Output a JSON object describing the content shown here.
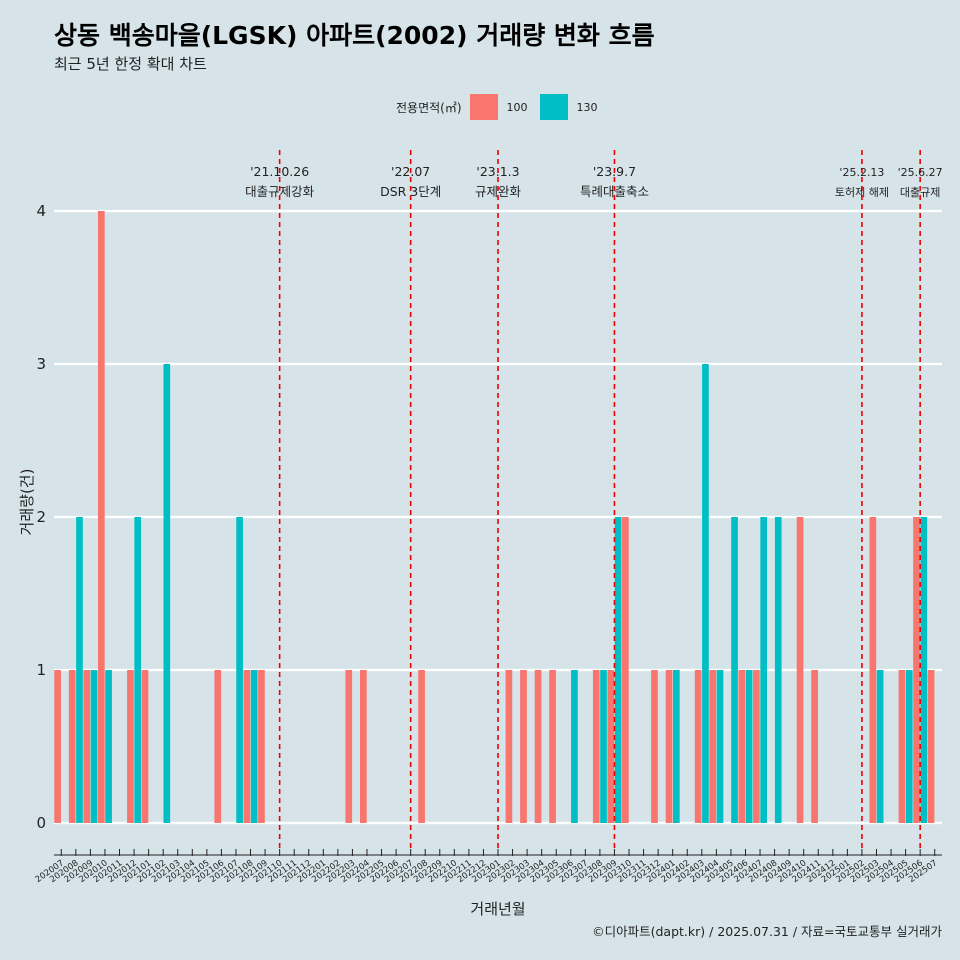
{
  "title": "상동 백송마을(LGSK) 아파트(2002) 거래량 변화 흐름",
  "subtitle": "최근 5년 한정 확대 차트",
  "caption": "©디아파트(dapt.kr) / 2025.07.31 / 자료=국토교통부 실거래가",
  "legend": {
    "title": "전용면적(㎡)",
    "items": [
      {
        "label": "100",
        "color": "#f8766d"
      },
      {
        "label": "130",
        "color": "#00bfc4"
      }
    ]
  },
  "chart_data": {
    "type": "bar",
    "xlabel": "거래년월",
    "ylabel": "거래량(건)",
    "ylim": [
      0,
      4
    ],
    "yticks": [
      0,
      1,
      2,
      3,
      4
    ],
    "grid": true,
    "legend_position": "top",
    "categories": [
      "202007",
      "202008",
      "202009",
      "202010",
      "202011",
      "202012",
      "202101",
      "202102",
      "202103",
      "202104",
      "202105",
      "202106",
      "202107",
      "202108",
      "202109",
      "202110",
      "202111",
      "202112",
      "202201",
      "202202",
      "202203",
      "202204",
      "202205",
      "202206",
      "202207",
      "202208",
      "202209",
      "202210",
      "202211",
      "202212",
      "202301",
      "202302",
      "202303",
      "202304",
      "202305",
      "202306",
      "202307",
      "202308",
      "202309",
      "202310",
      "202311",
      "202312",
      "202401",
      "202402",
      "202403",
      "202404",
      "202405",
      "202406",
      "202407",
      "202408",
      "202409",
      "202410",
      "202411",
      "202412",
      "202501",
      "202502",
      "202503",
      "202504",
      "202505",
      "202506",
      "202507"
    ],
    "series": [
      {
        "name": "100",
        "color": "#f8766d",
        "values": [
          1,
          1,
          1,
          4,
          0,
          1,
          1,
          0,
          0,
          0,
          0,
          1,
          0,
          1,
          1,
          0,
          0,
          0,
          0,
          0,
          1,
          1,
          0,
          0,
          0,
          1,
          0,
          0,
          0,
          0,
          0,
          1,
          1,
          1,
          1,
          0,
          0,
          1,
          1,
          2,
          0,
          1,
          1,
          0,
          1,
          1,
          0,
          1,
          1,
          0,
          0,
          2,
          1,
          0,
          0,
          0,
          2,
          0,
          1,
          2,
          1
        ]
      },
      {
        "name": "130",
        "color": "#00bfc4",
        "values": [
          0,
          2,
          1,
          1,
          0,
          2,
          0,
          3,
          0,
          0,
          0,
          0,
          2,
          1,
          0,
          0,
          0,
          0,
          0,
          0,
          0,
          0,
          0,
          0,
          0,
          0,
          0,
          0,
          0,
          0,
          0,
          0,
          0,
          0,
          0,
          1,
          0,
          1,
          2,
          0,
          0,
          0,
          1,
          0,
          3,
          1,
          2,
          1,
          2,
          2,
          0,
          0,
          0,
          0,
          0,
          0,
          1,
          0,
          1,
          2,
          0
        ]
      }
    ],
    "events": [
      {
        "date": "'21.10.26",
        "label": "대출규제강화",
        "category": "202110"
      },
      {
        "date": "'22.07",
        "label": "DSR 3단계",
        "category": "202207"
      },
      {
        "date": "'23.1.3",
        "label": "규제완화",
        "category": "202301"
      },
      {
        "date": "'23.9.7",
        "label": "특례대출축소",
        "category": "202309"
      },
      {
        "date": "'25.2.13",
        "label": "토허제 해제",
        "category": "202502"
      },
      {
        "date": "'25.6.27",
        "label": "대출규제",
        "category": "202506"
      }
    ]
  }
}
